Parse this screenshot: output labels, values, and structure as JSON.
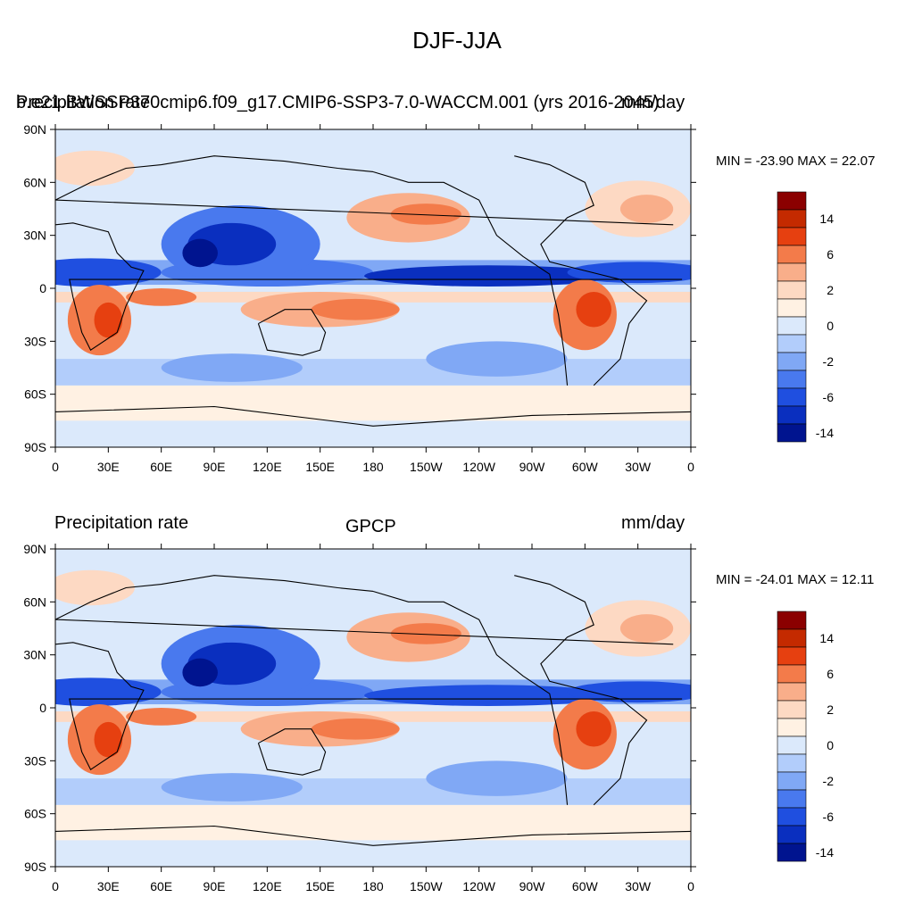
{
  "figure": {
    "title": "DJF-JJA"
  },
  "panels": [
    {
      "left_title": "Precipitation rate",
      "center_title": "b.e21.BWSSP370cmip6.f09_g17.CMIP6-SSP3-7.0-WACCM.001 (yrs 2016-2045)",
      "right_title": "mm/day",
      "stats": "MIN = -23.90 MAX =  22.07"
    },
    {
      "left_title": "Precipitation rate",
      "center_title": "GPCP",
      "right_title": "mm/day",
      "stats": "MIN = -24.01 MAX =  12.11"
    }
  ],
  "axes": {
    "lat_labels": [
      "90N",
      "60N",
      "30N",
      "0",
      "30S",
      "60S",
      "90S"
    ],
    "lon_labels": [
      "0",
      "30E",
      "60E",
      "90E",
      "120E",
      "150E",
      "180",
      "150W",
      "120W",
      "90W",
      "60W",
      "30W",
      "0"
    ]
  },
  "colorbar": {
    "colors": [
      "#8b0000",
      "#c42a00",
      "#e64010",
      "#f37b4a",
      "#f9ae8a",
      "#fdd9c3",
      "#fff1e3",
      "#dbe9fb",
      "#b2cdfb",
      "#80a8f5",
      "#4979ee",
      "#1f4fe0",
      "#0a2fbf",
      "#00148f"
    ],
    "labels": [
      "14",
      "6",
      "2",
      "0",
      "-2",
      "-6",
      "-14"
    ]
  },
  "chart_data": [
    {
      "type": "heatmap",
      "title": "b.e21.BWSSP370cmip6.f09_g17.CMIP6-SSP3-7.0-WACCM.001 (yrs 2016-2045)",
      "variable": "Precipitation rate",
      "units": "mm/day",
      "season_difference": "DJF-JJA",
      "min": -23.9,
      "max": 22.07,
      "xlim": [
        0,
        360
      ],
      "ylim": [
        -90,
        90
      ],
      "contour_levels": [
        -14,
        -6,
        -2,
        0,
        2,
        6,
        14
      ]
    },
    {
      "type": "heatmap",
      "title": "GPCP",
      "variable": "Precipitation rate",
      "units": "mm/day",
      "season_difference": "DJF-JJA",
      "min": -24.01,
      "max": 12.11,
      "xlim": [
        0,
        360
      ],
      "ylim": [
        -90,
        90
      ],
      "contour_levels": [
        -14,
        -6,
        -2,
        0,
        2,
        6,
        14
      ]
    }
  ]
}
